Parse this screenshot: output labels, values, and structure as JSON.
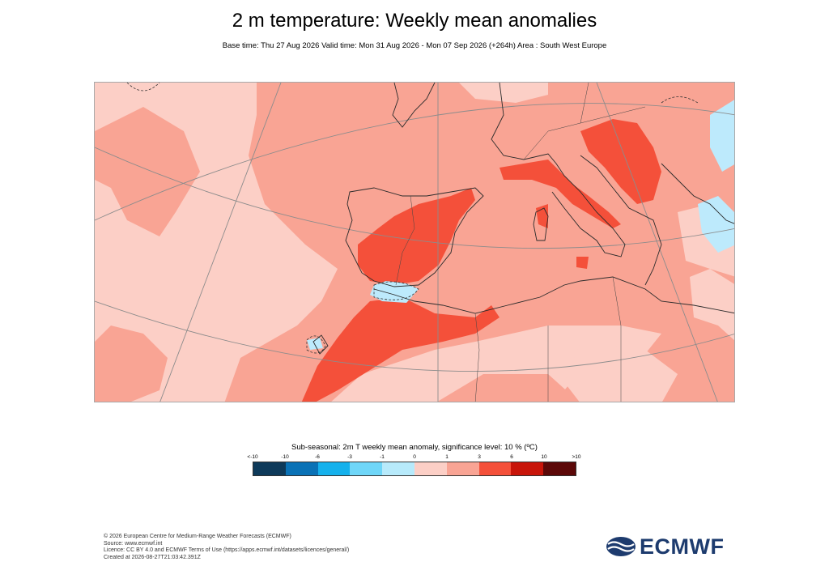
{
  "header": {
    "title": "2 m temperature: Weekly mean anomalies",
    "subtitle": "Base time: Thu 27 Aug 2026 Valid time: Mon 31 Aug 2026 - Mon 07 Sep 2026 (+264h) Area : South West Europe"
  },
  "map": {
    "region": "South West Europe",
    "colors": {
      "ocean_base": "#fccfc6",
      "land_base": "#f9a494",
      "strong": "#f4503a",
      "cool": "#bdeafc",
      "coastline": "#2b2b2b",
      "graticule": "#8c8c8c"
    }
  },
  "legend": {
    "title": "Sub-seasonal: 2m T weekly mean anomaly, significance level: 10 % (ºC)",
    "ticks": [
      "<-10",
      "-10",
      "-6",
      "-3",
      "-1",
      "0",
      "1",
      "3",
      "6",
      "10",
      ">10"
    ],
    "colors": [
      "#0e3a5a",
      "#0a72b6",
      "#15b1ec",
      "#6fd6f8",
      "#b7eafb",
      "#fccfc6",
      "#f9a494",
      "#f4503a",
      "#c8150a",
      "#5c0808"
    ]
  },
  "footer": {
    "line1": "© 2026 European Centre for Medium-Range Weather Forecasts (ECMWF)",
    "line2": "Source: www.ecmwf.int",
    "line3": "Licence: CC BY 4.0 and ECMWF Terms of Use (https://apps.ecmwf.int/datasets/licences/general/)",
    "line4": "Created at 2026-08-27T21:03:42.391Z"
  },
  "logo": {
    "text": "ECMWF"
  }
}
